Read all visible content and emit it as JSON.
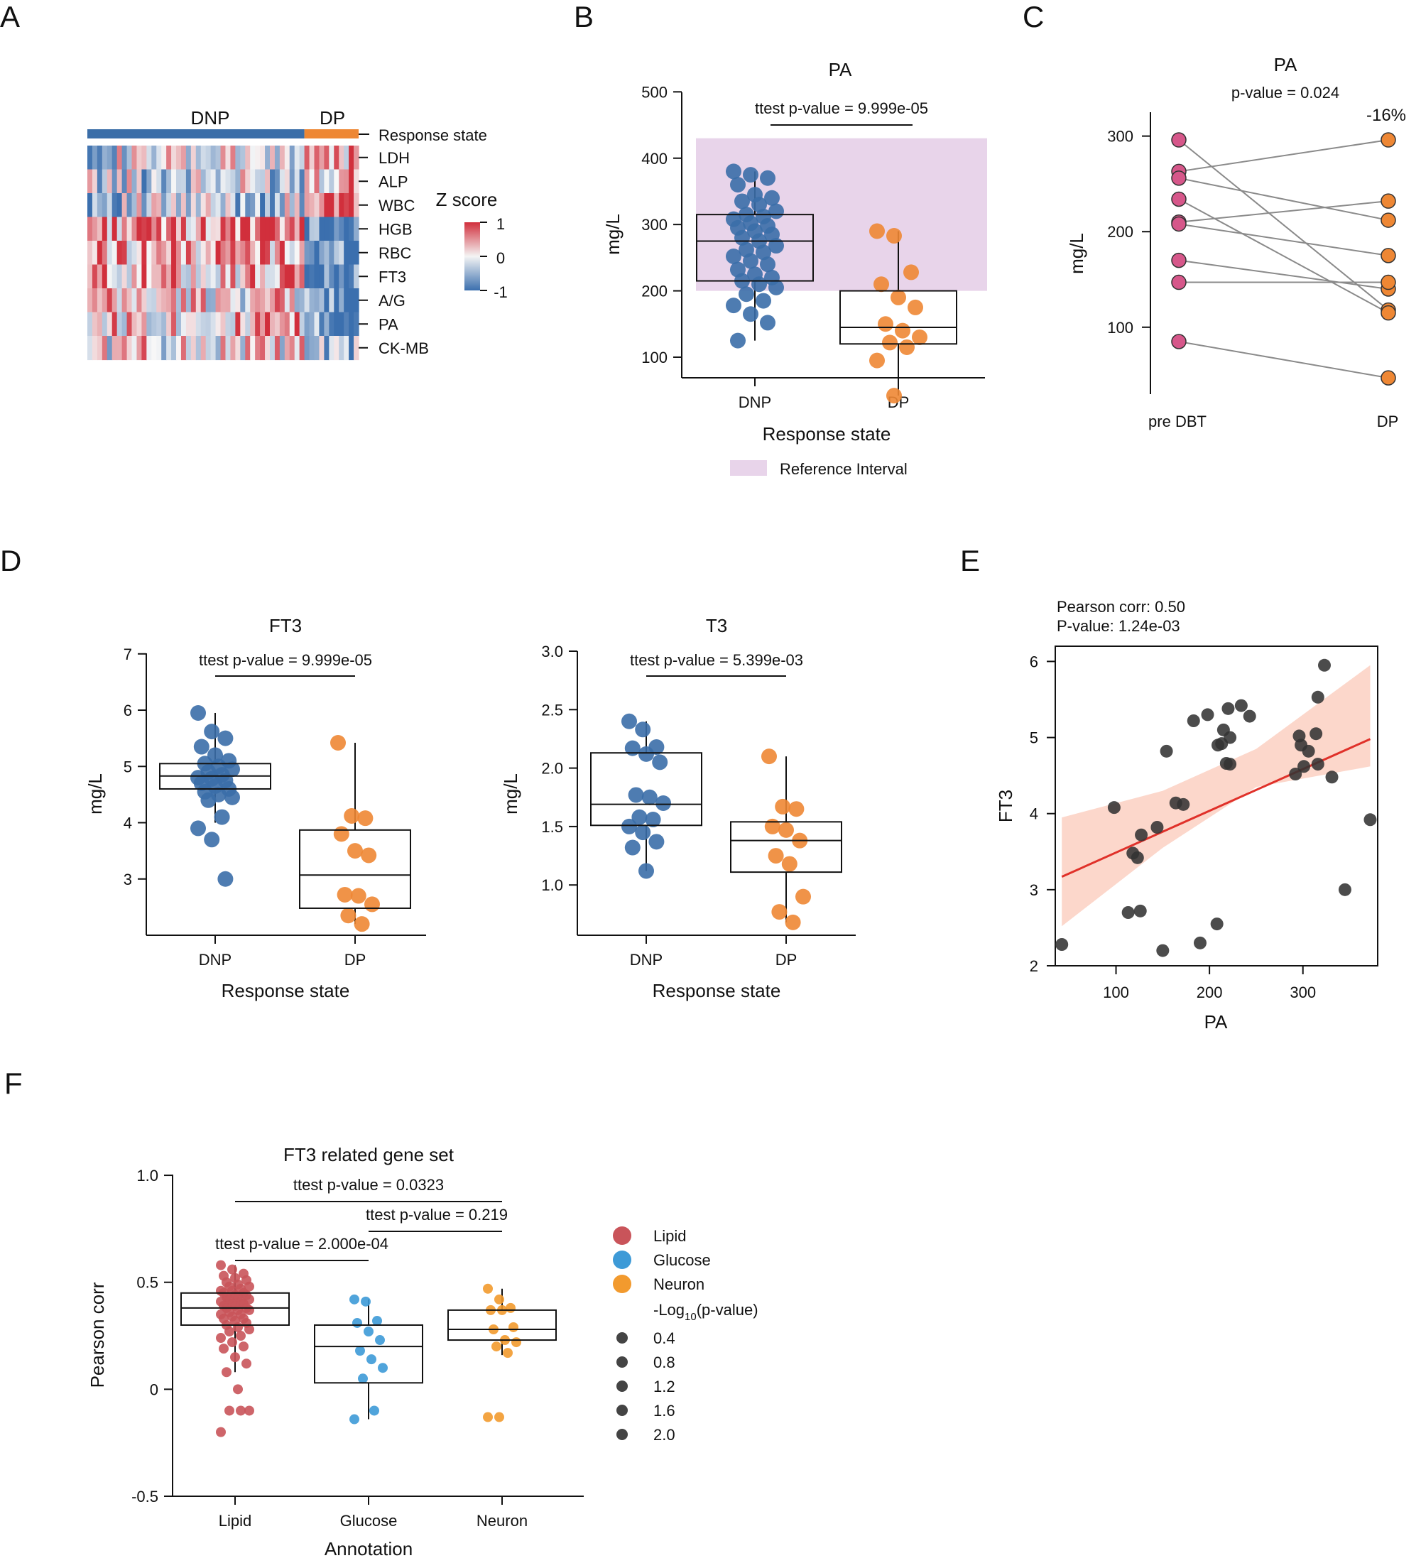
{
  "panels": {
    "A": "A",
    "B": "B",
    "C": "C",
    "D": "D",
    "E": "E",
    "F": "F"
  },
  "colors": {
    "dnp": "#3b6ea8",
    "dp": "#ee8734",
    "pink": "#d6578a",
    "ref_interval": "#e8d4ea",
    "red_line": "#e0312a",
    "ci_band": "#fbd0c2",
    "heat_high": "#d12f3c",
    "heat_low": "#3b6fae",
    "lipid": "#c9545a",
    "glucose": "#3d9ad7",
    "neuron": "#f29a2e"
  },
  "chart_data": [
    {
      "panel": "A",
      "type": "heatmap",
      "group_labels": [
        "DNP",
        "DP"
      ],
      "annotation_label": "Response state",
      "rows": [
        "LDH",
        "ALP",
        "WBC",
        "HGB",
        "RBC",
        "FT3",
        "A/G",
        "PA",
        "CK-MB"
      ],
      "n_dnp": 44,
      "n_dp": 11,
      "legend_title": "Z score",
      "legend_ticks": [
        "1",
        "0",
        "-1"
      ]
    },
    {
      "panel": "B",
      "type": "scatter",
      "title": "PA",
      "ylabel": "mg/L",
      "xlabel": "Response state",
      "categories": [
        "DNP",
        "DP"
      ],
      "yticks": [
        "100",
        "200",
        "300",
        "400",
        "500"
      ],
      "ylim": [
        70,
        510
      ],
      "reference_interval": [
        200,
        430
      ],
      "reference_label": "Reference Interval",
      "annotation": "ttest p-value = 9.999e-05",
      "series": [
        {
          "name": "DNP",
          "box": [
            215,
            275,
            315
          ],
          "whisker": [
            125,
            380
          ],
          "values": [
            380,
            375,
            370,
            360,
            345,
            340,
            335,
            330,
            320,
            315,
            312,
            308,
            302,
            298,
            295,
            290,
            285,
            280,
            275,
            268,
            262,
            258,
            252,
            245,
            240,
            232,
            225,
            220,
            215,
            210,
            205,
            195,
            185,
            178,
            165,
            152,
            125
          ]
        },
        {
          "name": "DP",
          "box": [
            120,
            145,
            200
          ],
          "whisker": [
            42,
            290
          ],
          "values": [
            290,
            283,
            228,
            210,
            190,
            175,
            150,
            140,
            130,
            122,
            115,
            95,
            42
          ]
        }
      ]
    },
    {
      "panel": "C",
      "type": "line",
      "title": "PA",
      "subtitle": "p-value = 0.024",
      "change_label": "-16%",
      "ylabel": "mg/L",
      "categories": [
        "pre DBT",
        "DP"
      ],
      "yticks": [
        "100",
        "200",
        "300"
      ],
      "ylim": [
        30,
        325
      ],
      "pairs": [
        [
          296,
          118
        ],
        [
          263,
          296
        ],
        [
          256,
          212
        ],
        [
          234,
          115
        ],
        [
          210,
          232
        ],
        [
          208,
          175
        ],
        [
          170,
          140
        ],
        [
          147,
          147
        ],
        [
          85,
          47
        ]
      ]
    },
    {
      "panel": "D1",
      "type": "scatter",
      "title": "FT3",
      "ylabel": "mg/L",
      "xlabel": "Response state",
      "categories": [
        "DNP",
        "DP"
      ],
      "yticks": [
        "3",
        "4",
        "5",
        "6",
        "7"
      ],
      "ylim": [
        2.0,
        7.3
      ],
      "annotation": "ttest p-value = 9.999e-05",
      "series": [
        {
          "name": "DNP",
          "box": [
            4.6,
            4.83,
            5.05
          ],
          "whisker": [
            4.0,
            5.95
          ],
          "values": [
            5.95,
            5.62,
            5.5,
            5.35,
            5.2,
            5.1,
            5.05,
            5.0,
            4.95,
            4.9,
            4.85,
            4.8,
            4.78,
            4.75,
            4.7,
            4.65,
            4.6,
            4.55,
            4.5,
            4.45,
            4.4,
            4.1,
            3.9,
            3.7,
            3.0
          ]
        },
        {
          "name": "DP",
          "box": [
            2.48,
            3.07,
            3.87
          ],
          "whisker": [
            2.2,
            5.42
          ],
          "values": [
            5.42,
            4.12,
            4.08,
            3.8,
            3.5,
            3.42,
            2.72,
            2.7,
            2.55,
            2.35,
            2.2
          ]
        }
      ]
    },
    {
      "panel": "D2",
      "type": "scatter",
      "title": "T3",
      "ylabel": "mg/L",
      "xlabel": "Response state",
      "categories": [
        "DNP",
        "DP"
      ],
      "yticks": [
        "1.0",
        "1.5",
        "2.0",
        "2.5",
        "3.0"
      ],
      "ylim": [
        0.57,
        3.0
      ],
      "annotation": "ttest p-value = 5.399e-03",
      "series": [
        {
          "name": "DNP",
          "box": [
            1.51,
            1.69,
            2.13
          ],
          "whisker": [
            1.12,
            2.4
          ],
          "values": [
            2.4,
            2.33,
            2.18,
            2.17,
            2.12,
            2.05,
            1.77,
            1.75,
            1.7,
            1.58,
            1.56,
            1.5,
            1.45,
            1.37,
            1.32,
            1.12
          ]
        },
        {
          "name": "DP",
          "box": [
            1.11,
            1.38,
            1.54
          ],
          "whisker": [
            0.68,
            2.1
          ],
          "values": [
            2.1,
            1.67,
            1.65,
            1.5,
            1.47,
            1.38,
            1.25,
            1.18,
            0.9,
            0.77,
            0.68
          ]
        }
      ]
    },
    {
      "panel": "E",
      "type": "scatter",
      "xlabel": "PA",
      "ylabel": "FT3",
      "xticks": [
        "100",
        "200",
        "300"
      ],
      "yticks": [
        "2",
        "3",
        "4",
        "5",
        "6"
      ],
      "xlim": [
        35,
        380
      ],
      "ylim": [
        2.0,
        6.2
      ],
      "stats_line1": "Pearson  corr:  0.50",
      "stats_line2": "P-value: 1.24e-03",
      "fit": {
        "x": [
          42,
          372
        ],
        "y": [
          3.17,
          4.98
        ]
      },
      "band_upper": [
        [
          42,
          3.95
        ],
        [
          150,
          4.3
        ],
        [
          250,
          4.85
        ],
        [
          372,
          5.95
        ]
      ],
      "band_lower": [
        [
          42,
          2.52
        ],
        [
          150,
          3.55
        ],
        [
          250,
          4.35
        ],
        [
          372,
          4.62
        ]
      ],
      "points": [
        [
          42,
          2.28
        ],
        [
          98,
          4.08
        ],
        [
          113,
          2.7
        ],
        [
          118,
          3.48
        ],
        [
          123,
          3.42
        ],
        [
          126,
          2.72
        ],
        [
          127,
          3.72
        ],
        [
          150,
          2.2
        ],
        [
          144,
          3.82
        ],
        [
          154,
          4.82
        ],
        [
          164,
          4.14
        ],
        [
          172,
          4.12
        ],
        [
          183,
          5.22
        ],
        [
          190,
          2.3
        ],
        [
          198,
          5.3
        ],
        [
          208,
          2.55
        ],
        [
          209,
          4.9
        ],
        [
          213,
          4.92
        ],
        [
          215,
          5.1
        ],
        [
          218,
          4.66
        ],
        [
          220,
          5.38
        ],
        [
          222,
          4.65
        ],
        [
          222,
          5.0
        ],
        [
          234,
          5.42
        ],
        [
          243,
          5.28
        ],
        [
          292,
          4.52
        ],
        [
          296,
          5.02
        ],
        [
          298,
          4.9
        ],
        [
          301,
          4.62
        ],
        [
          306,
          4.82
        ],
        [
          314,
          5.05
        ],
        [
          316,
          4.65
        ],
        [
          316,
          5.53
        ],
        [
          323,
          5.95
        ],
        [
          331,
          4.48
        ],
        [
          345,
          3.0
        ],
        [
          372,
          3.92
        ]
      ]
    },
    {
      "panel": "F",
      "type": "scatter",
      "title": "FT3 related gene set",
      "ylabel": "Pearson corr",
      "xlabel": "Annotation",
      "categories": [
        "Lipid",
        "Glucose",
        "Neuron"
      ],
      "yticks": [
        "-0.5",
        "0",
        "0.5",
        "1.0"
      ],
      "ylim": [
        -0.5,
        1.05
      ],
      "annotations": [
        "ttest p-value = 0.0323",
        "ttest p-value = 0.219",
        "ttest p-value = 2.000e-04"
      ],
      "legend": [
        "Lipid",
        "Glucose",
        "Neuron"
      ],
      "size_legend_title": "-Log",
      "size_legend_sub": "10",
      "size_legend_suffix": "(p-value)",
      "size_legend": [
        "0.4",
        "0.8",
        "1.2",
        "1.6",
        "2.0"
      ],
      "series": [
        {
          "name": "Lipid",
          "box": [
            0.3,
            0.38,
            0.45
          ],
          "whisker": [
            0.08,
            0.58
          ],
          "values": [
            0.58,
            0.56,
            0.54,
            0.53,
            0.52,
            0.51,
            0.5,
            0.49,
            0.48,
            0.48,
            0.47,
            0.46,
            0.46,
            0.45,
            0.45,
            0.44,
            0.44,
            0.43,
            0.43,
            0.42,
            0.42,
            0.41,
            0.41,
            0.4,
            0.4,
            0.39,
            0.39,
            0.38,
            0.38,
            0.37,
            0.37,
            0.36,
            0.35,
            0.35,
            0.34,
            0.33,
            0.33,
            0.32,
            0.31,
            0.3,
            0.29,
            0.28,
            0.27,
            0.25,
            0.24,
            0.22,
            0.2,
            0.19,
            0.15,
            0.12,
            0.08,
            0.0,
            -0.1,
            -0.1,
            -0.1,
            -0.2
          ]
        },
        {
          "name": "Glucose",
          "box": [
            0.03,
            0.2,
            0.3
          ],
          "whisker": [
            -0.14,
            0.42
          ],
          "values": [
            0.42,
            0.41,
            0.32,
            0.31,
            0.27,
            0.23,
            0.18,
            0.14,
            0.1,
            0.05,
            -0.1,
            -0.14
          ]
        },
        {
          "name": "Neuron",
          "box": [
            0.23,
            0.28,
            0.37
          ],
          "whisker": [
            0.16,
            0.47
          ],
          "values": [
            0.47,
            0.42,
            0.38,
            0.37,
            0.37,
            0.29,
            0.28,
            0.23,
            0.22,
            0.2,
            0.17,
            -0.13,
            -0.13
          ]
        }
      ]
    }
  ]
}
